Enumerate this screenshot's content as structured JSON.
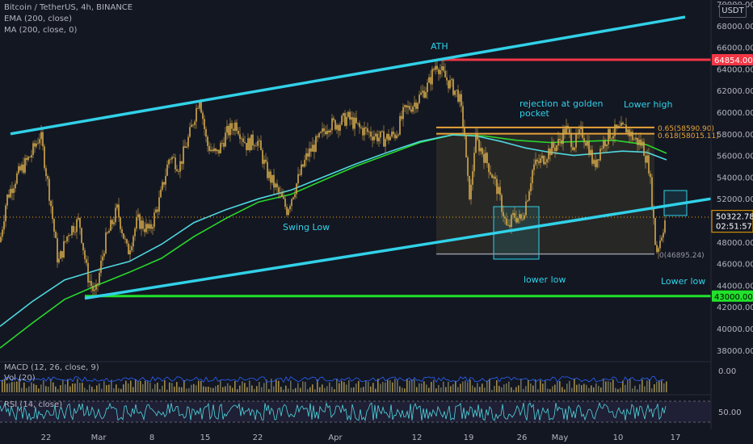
{
  "header": {
    "symbol_line": "Bitcoin / TetherUS, 4h, BINANCE",
    "ema_label": "EMA (200, close)",
    "ma_label": "MA (200, close, 0)",
    "currency_button": "USDT"
  },
  "indicators": {
    "macd_label": "MACD (12, 26, close, 9)",
    "vol_label": "Vol (20)",
    "rsi_label": "RSI (14, close)",
    "macd_value": "0.00",
    "rsi_value": "50.00"
  },
  "colors": {
    "background": "#131722",
    "candle": "#d4a94b",
    "channel": "#31d1e8",
    "ath_line": "#f23645",
    "support_line": "#22e22b",
    "ema": "#4fd8e0",
    "ma": "#29d82c",
    "fib_line": "#e8a33a",
    "current_price": "#f7a600"
  },
  "chart_data": {
    "type": "candlestick",
    "title": "Bitcoin / TetherUS, 4h, BINANCE",
    "ylim": [
      37000,
      70000
    ],
    "y_ticks": [
      38000,
      40000,
      42000,
      44000,
      46000,
      48000,
      50000,
      52000,
      54000,
      56000,
      58000,
      60000,
      62000,
      64000,
      66000,
      68000,
      70000
    ],
    "x_tick_labels": [
      "22",
      "Mar",
      "8",
      "15",
      "22",
      "Apr",
      "12",
      "19",
      "26",
      "May",
      "10",
      "17"
    ],
    "price_path": [
      [
        0,
        48000
      ],
      [
        8,
        52000
      ],
      [
        20,
        54000
      ],
      [
        38,
        56000
      ],
      [
        50,
        58000
      ],
      [
        62,
        52000
      ],
      [
        72,
        46000
      ],
      [
        85,
        49000
      ],
      [
        98,
        50000
      ],
      [
        108,
        45000
      ],
      [
        118,
        43000
      ],
      [
        130,
        48000
      ],
      [
        145,
        51000
      ],
      [
        158,
        47000
      ],
      [
        170,
        50000
      ],
      [
        185,
        49000
      ],
      [
        198,
        52000
      ],
      [
        210,
        56000
      ],
      [
        222,
        55000
      ],
      [
        235,
        58000
      ],
      [
        247,
        61500
      ],
      [
        256,
        57000
      ],
      [
        268,
        56000
      ],
      [
        280,
        58000
      ],
      [
        292,
        59000
      ],
      [
        305,
        57000
      ],
      [
        318,
        57500
      ],
      [
        330,
        54500
      ],
      [
        345,
        52500
      ],
      [
        355,
        51000
      ],
      [
        365,
        53000
      ],
      [
        380,
        56000
      ],
      [
        395,
        57500
      ],
      [
        405,
        58800
      ],
      [
        420,
        59000
      ],
      [
        430,
        59500
      ],
      [
        445,
        58500
      ],
      [
        460,
        58000
      ],
      [
        475,
        57500
      ],
      [
        490,
        58000
      ],
      [
        500,
        60000
      ],
      [
        515,
        61000
      ],
      [
        530,
        62500
      ],
      [
        540,
        64600
      ],
      [
        548,
        63500
      ],
      [
        558,
        62500
      ],
      [
        568,
        61500
      ],
      [
        575,
        58000
      ],
      [
        578,
        54000
      ],
      [
        582,
        52000
      ],
      [
        588,
        57500
      ],
      [
        596,
        56500
      ],
      [
        605,
        55000
      ],
      [
        615,
        53000
      ],
      [
        622,
        51000
      ],
      [
        628,
        49000
      ],
      [
        636,
        50500
      ],
      [
        645,
        50000
      ],
      [
        652,
        52000
      ],
      [
        660,
        55000
      ],
      [
        670,
        55500
      ],
      [
        680,
        56500
      ],
      [
        690,
        57000
      ],
      [
        700,
        58500
      ],
      [
        710,
        57000
      ],
      [
        720,
        58200
      ],
      [
        728,
        57000
      ],
      [
        735,
        55000
      ],
      [
        745,
        57000
      ],
      [
        755,
        58000
      ],
      [
        765,
        58300
      ],
      [
        775,
        58500
      ],
      [
        785,
        57500
      ],
      [
        795,
        57000
      ],
      [
        803,
        55000
      ],
      [
        808,
        51000
      ],
      [
        812,
        47000
      ],
      [
        818,
        48500
      ],
      [
        824,
        50300
      ]
    ],
    "annotations": [
      {
        "text": "ATH"
      },
      {
        "text": "rejection at golden"
      },
      {
        "text": "pocket"
      },
      {
        "text": "Lower high"
      },
      {
        "text": "Swing Low"
      },
      {
        "text": "lower low"
      },
      {
        "text": "Lower low"
      },
      {
        "text": "0.65(58590.90)"
      },
      {
        "text": "0.618(58015.11)"
      },
      {
        "text": "0(46895.24)"
      }
    ],
    "price_labels": {
      "ath": "64854.00",
      "support": "43000.00",
      "current": "50322.78",
      "countdown": "02:51:57"
    },
    "levels": {
      "ath": 64854,
      "support": 43000,
      "current": 50322.78,
      "fib_065": 58590.9,
      "fib_0618": 58015.11,
      "fib_0": 46895.24
    },
    "upper_channel": [
      [
        13,
        58000
      ],
      [
        848,
        68800
      ]
    ],
    "lower_channel": [
      [
        105,
        42800
      ],
      [
        880,
        52000
      ]
    ],
    "ema200": [
      [
        0,
        40200
      ],
      [
        40,
        42500
      ],
      [
        80,
        44500
      ],
      [
        120,
        45400
      ],
      [
        160,
        46200
      ],
      [
        200,
        47800
      ],
      [
        240,
        49800
      ],
      [
        280,
        51000
      ],
      [
        320,
        52000
      ],
      [
        360,
        52800
      ],
      [
        400,
        54000
      ],
      [
        440,
        55200
      ],
      [
        480,
        56300
      ],
      [
        520,
        57300
      ],
      [
        560,
        57900
      ],
      [
        590,
        57800
      ],
      [
        620,
        57300
      ],
      [
        650,
        56700
      ],
      [
        680,
        56300
      ],
      [
        710,
        56000
      ],
      [
        740,
        56200
      ],
      [
        770,
        56400
      ],
      [
        800,
        56300
      ],
      [
        825,
        55600
      ]
    ],
    "ma200": [
      [
        0,
        38200
      ],
      [
        40,
        40500
      ],
      [
        80,
        42700
      ],
      [
        120,
        44000
      ],
      [
        160,
        45200
      ],
      [
        200,
        46500
      ],
      [
        240,
        48500
      ],
      [
        280,
        50200
      ],
      [
        320,
        51700
      ],
      [
        360,
        52400
      ],
      [
        400,
        53700
      ],
      [
        440,
        55000
      ],
      [
        480,
        56100
      ],
      [
        520,
        57200
      ],
      [
        560,
        57900
      ],
      [
        600,
        57800
      ],
      [
        640,
        57400
      ],
      [
        680,
        57200
      ],
      [
        720,
        57300
      ],
      [
        760,
        57400
      ],
      [
        800,
        57000
      ],
      [
        825,
        56200
      ]
    ]
  }
}
